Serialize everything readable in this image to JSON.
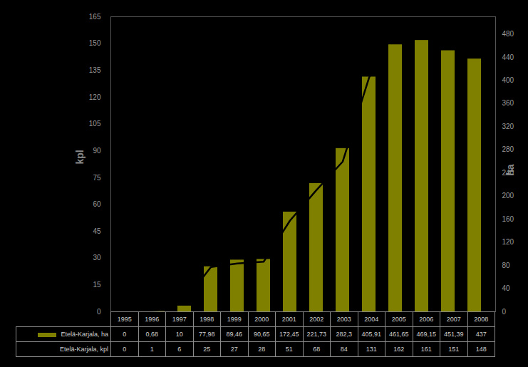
{
  "chart_data": {
    "type": "bar",
    "categories": [
      "1995",
      "1996",
      "1997",
      "1998",
      "1999",
      "2000",
      "2001",
      "2002",
      "2003",
      "2004",
      "2005",
      "2006",
      "2007",
      "2008"
    ],
    "series": [
      {
        "name": "Etelä-Karjala, ha",
        "type": "bar",
        "axis": "y2",
        "color": "#808000",
        "values": [
          0,
          0.68,
          10,
          77.98,
          89.46,
          90.65,
          172.45,
          221.73,
          282.3,
          405.91,
          461.65,
          469.15,
          451.39,
          437
        ],
        "value_labels": [
          "0",
          "0,68",
          "10",
          "77,98",
          "89,46",
          "90,65",
          "172,45",
          "221,73",
          "282,3",
          "405,91",
          "461,65",
          "469,15",
          "451,39",
          "437"
        ]
      },
      {
        "name": "Etelä-Karjala, kpl",
        "type": "line",
        "color": "#000000",
        "values": [
          0,
          1,
          6,
          25,
          27,
          28,
          51,
          68,
          84,
          131,
          162,
          161,
          151,
          148
        ]
      }
    ],
    "ylabel": "kpl",
    "y2label": "ha",
    "ylim": [
      0,
      165
    ],
    "yticks": [
      0,
      15,
      30,
      45,
      60,
      75,
      90,
      105,
      120,
      135,
      150,
      165
    ],
    "y2lim": [
      0,
      510
    ],
    "y2ticks": [
      0,
      40,
      80,
      120,
      160,
      200,
      240,
      280,
      320,
      360,
      400,
      440,
      480
    ]
  }
}
